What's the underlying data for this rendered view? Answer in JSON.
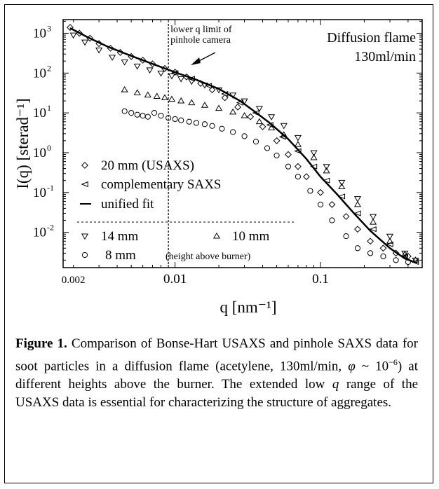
{
  "chart_data": {
    "type": "scatter",
    "xscale": "log",
    "yscale": "log",
    "xlim": [
      0.0017,
      0.5
    ],
    "ylim": [
      0.0013,
      2200
    ],
    "xlabel": "q [nm⁻¹]",
    "ylabel": "I(q) [sterad⁻¹]",
    "x_ticks": [
      {
        "value": 0.002,
        "label": "0.002"
      },
      {
        "value": 0.01,
        "label": "0.01"
      },
      {
        "value": 0.1,
        "label": "0.1"
      }
    ],
    "y_ticks": [
      {
        "value": 1000,
        "label": "10",
        "exp": "3"
      },
      {
        "value": 100,
        "label": "10",
        "exp": "2"
      },
      {
        "value": 10,
        "label": "10",
        "exp": "1"
      },
      {
        "value": 1,
        "label": "10",
        "exp": "0"
      },
      {
        "value": 0.1,
        "label": "10",
        "exp": "-1"
      },
      {
        "value": 0.01,
        "label": "10",
        "exp": "-2"
      }
    ],
    "title_lines": [
      "Diffusion flame",
      "130ml/min"
    ],
    "annotation": {
      "lines": [
        "lower q limit of",
        "pinhole camera"
      ],
      "q_limit": 0.009
    },
    "legend": [
      {
        "marker": "diamond",
        "label": "20 mm (USAXS)"
      },
      {
        "marker": "triangle-left",
        "label": "complementary SAXS"
      },
      {
        "marker": "line",
        "label": "unified fit"
      },
      {
        "marker": "triangle-down",
        "label": "14 mm"
      },
      {
        "marker": "triangle-up",
        "label": "10 mm"
      },
      {
        "marker": "circle",
        "label": "8 mm"
      },
      {
        "marker": "none",
        "label": "(height above burner)"
      }
    ],
    "series": [
      {
        "name": "20 mm (USAXS)",
        "marker": "diamond",
        "x": [
          0.0019,
          0.0022,
          0.0026,
          0.003,
          0.0036,
          0.0042,
          0.005,
          0.006,
          0.007,
          0.0085,
          0.01,
          0.012,
          0.015,
          0.018,
          0.022,
          0.027,
          0.033,
          0.04,
          0.05,
          0.06,
          0.07,
          0.08,
          0.1,
          0.12,
          0.15,
          0.18,
          0.22,
          0.27,
          0.33,
          0.4
        ],
        "y": [
          1400,
          1000,
          750,
          550,
          420,
          330,
          260,
          210,
          170,
          130,
          105,
          80,
          55,
          38,
          24,
          14,
          8,
          4.5,
          2.0,
          0.9,
          0.45,
          0.25,
          0.1,
          0.05,
          0.025,
          0.012,
          0.006,
          0.004,
          0.003,
          0.0025
        ]
      },
      {
        "name": "complementary SAXS",
        "marker": "triangle-left",
        "x": [
          0.01,
          0.013,
          0.017,
          0.022,
          0.028,
          0.036,
          0.045,
          0.055,
          0.07,
          0.09,
          0.11,
          0.14,
          0.18,
          0.23,
          0.3,
          0.38,
          0.45
        ],
        "y": [
          100,
          72,
          48,
          30,
          18,
          10,
          5,
          2.5,
          1.1,
          0.45,
          0.2,
          0.08,
          0.03,
          0.012,
          0.005,
          0.0025,
          0.0018
        ]
      },
      {
        "name": "14 mm",
        "marker": "triangle-down",
        "x": [
          0.002,
          0.0024,
          0.003,
          0.0037,
          0.0045,
          0.0055,
          0.0067,
          0.008,
          0.0095,
          0.011,
          0.013,
          0.016,
          0.02,
          0.025,
          0.03,
          0.038,
          0.046,
          0.056,
          0.07,
          0.09,
          0.11,
          0.14,
          0.18,
          0.23,
          0.3,
          0.38,
          0.45
        ],
        "y": [
          900,
          600,
          380,
          250,
          190,
          150,
          120,
          100,
          85,
          72,
          62,
          50,
          38,
          28,
          20,
          13,
          8,
          4.8,
          2.4,
          1.0,
          0.45,
          0.18,
          0.07,
          0.025,
          0.008,
          0.003,
          0.002
        ]
      },
      {
        "name": "10 mm",
        "marker": "triangle-up",
        "x": [
          0.0045,
          0.0055,
          0.0065,
          0.0075,
          0.0085,
          0.0095,
          0.011,
          0.013,
          0.016,
          0.02,
          0.025,
          0.03,
          0.038,
          0.046,
          0.056,
          0.07,
          0.09,
          0.11,
          0.14,
          0.18,
          0.23,
          0.3,
          0.38,
          0.45
        ],
        "y": [
          38,
          32,
          28,
          26,
          24,
          22,
          20,
          18,
          15.5,
          13,
          10.5,
          8.5,
          6,
          4.2,
          2.8,
          1.6,
          0.75,
          0.35,
          0.14,
          0.05,
          0.018,
          0.006,
          0.0028,
          0.002
        ]
      },
      {
        "name": "8 mm",
        "marker": "circle",
        "x": [
          0.0045,
          0.005,
          0.0055,
          0.006,
          0.0065,
          0.0072,
          0.008,
          0.009,
          0.01,
          0.011,
          0.0125,
          0.014,
          0.016,
          0.018,
          0.021,
          0.025,
          0.03,
          0.036,
          0.043,
          0.05,
          0.06,
          0.07,
          0.085,
          0.1,
          0.12,
          0.15,
          0.18,
          0.22,
          0.27,
          0.33,
          0.4
        ],
        "y": [
          11,
          10,
          9,
          8.5,
          8,
          10,
          8.5,
          7.5,
          7,
          6.5,
          6,
          5.6,
          5.2,
          4.7,
          4.0,
          3.3,
          2.6,
          1.9,
          1.3,
          0.85,
          0.45,
          0.25,
          0.11,
          0.05,
          0.02,
          0.008,
          0.004,
          0.003,
          0.0025,
          0.002,
          0.0018
        ]
      },
      {
        "name": "unified fit",
        "marker": "line",
        "x": [
          0.0019,
          0.0025,
          0.0035,
          0.005,
          0.007,
          0.01,
          0.014,
          0.02,
          0.028,
          0.035,
          0.045,
          0.06,
          0.08,
          0.1,
          0.13,
          0.17,
          0.22,
          0.3,
          0.38,
          0.46
        ],
        "y": [
          1350,
          800,
          450,
          270,
          170,
          105,
          68,
          40,
          20,
          11,
          5.5,
          2.2,
          0.7,
          0.25,
          0.09,
          0.03,
          0.011,
          0.004,
          0.0022,
          0.0017
        ]
      }
    ]
  },
  "caption": {
    "label": "Figure 1.",
    "text_1": " Comparison of Bonse-Hart USAXS and pinhole SAXS data for soot particles in a diffusion flame (acetylene, 130ml/min, ",
    "phi": "φ",
    "text_2": " ~ 10",
    "exp": "−6",
    "text_3": ") at different heights above the burner. The extended low ",
    "q": "q",
    "text_4": " range of the USAXS data is essential for characterizing the structure of  aggregates."
  }
}
